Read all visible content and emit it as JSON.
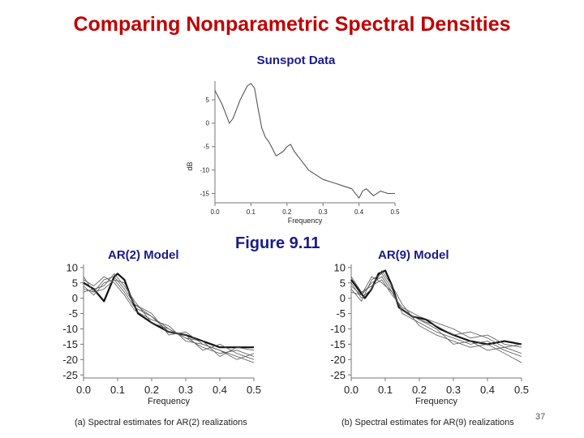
{
  "slide": {
    "title": "Comparing Nonparametric Spectral Densities",
    "top_label": "Sunspot Data",
    "ar2_label": "AR(2) Model",
    "figure_label": "Figure 9.11",
    "ar9_label": "AR(9) Model",
    "page_number": "37",
    "caption_ar2": "(a) Spectral estimates for AR(2) realizations",
    "caption_ar9": "(b) Spectral estimates for AR(9) realizations"
  },
  "colors": {
    "title": "#c00000",
    "labels": "#1a1a8c",
    "curve": "#555555"
  },
  "chart_data": [
    {
      "id": "sunspot",
      "type": "line",
      "xlabel": "Frequency",
      "ylabel": "dB",
      "xlim": [
        0,
        0.5
      ],
      "ylim": [
        -17,
        9
      ],
      "xticks": [
        "0.0",
        "0.1",
        "0.2",
        "0.3",
        "0.4",
        "0.5"
      ],
      "yticks": [
        "5",
        "0",
        "-5",
        "-10",
        "-15"
      ],
      "ytick_values": [
        5,
        0,
        -5,
        -10,
        -15
      ],
      "grid": false,
      "series": [
        {
          "x": [
            0,
            0.02,
            0.04,
            0.05,
            0.07,
            0.09,
            0.1,
            0.11,
            0.12,
            0.13,
            0.14,
            0.15,
            0.17,
            0.19,
            0.2,
            0.21,
            0.22,
            0.24,
            0.26,
            0.28,
            0.3,
            0.32,
            0.34,
            0.36,
            0.38,
            0.4,
            0.41,
            0.42,
            0.44,
            0.46,
            0.48,
            0.5
          ],
          "y": [
            7,
            4,
            0,
            1,
            5,
            8,
            8.5,
            7.5,
            3,
            -1,
            -3,
            -4,
            -7,
            -6,
            -5,
            -4.5,
            -6,
            -8,
            -10,
            -11,
            -12,
            -12.5,
            -13,
            -13.5,
            -14,
            -16,
            -14.5,
            -14,
            -15.5,
            -14.5,
            -15,
            -15
          ]
        }
      ]
    },
    {
      "id": "ar2",
      "type": "line",
      "xlabel": "Frequency",
      "ylabel": "",
      "xlim": [
        0,
        0.5
      ],
      "ylim": [
        -26,
        11
      ],
      "xticks": [
        "0.0",
        "0.1",
        "0.2",
        "0.3",
        "0.4",
        "0.5"
      ],
      "yticks": [
        "10",
        "5",
        "0",
        "-5",
        "-10",
        "-15",
        "-20",
        "-25"
      ],
      "ytick_values": [
        10,
        5,
        0,
        -5,
        -10,
        -15,
        -20,
        -25
      ],
      "grid": false,
      "series": [
        {
          "x": [
            0,
            0.03,
            0.06,
            0.09,
            0.1,
            0.12,
            0.14,
            0.16,
            0.2,
            0.25,
            0.3,
            0.35,
            0.4,
            0.45,
            0.5
          ],
          "y": [
            5,
            3,
            -1,
            7,
            8,
            6,
            0,
            -5,
            -8,
            -11,
            -12,
            -14,
            -16,
            -16,
            -16
          ]
        },
        {
          "x": [
            0,
            0.03,
            0.06,
            0.09,
            0.12,
            0.15,
            0.2,
            0.25,
            0.3,
            0.35,
            0.4,
            0.45,
            0.5
          ],
          "y": [
            3,
            2,
            6,
            7,
            3,
            -2,
            -6,
            -10,
            -13,
            -16,
            -18,
            -17,
            -19
          ]
        },
        {
          "x": [
            0,
            0.03,
            0.06,
            0.09,
            0.12,
            0.15,
            0.2,
            0.25,
            0.3,
            0.35,
            0.4,
            0.45,
            0.5
          ],
          "y": [
            6,
            4,
            7,
            5,
            1,
            -4,
            -7,
            -9,
            -14,
            -15,
            -17,
            -20,
            -18
          ]
        },
        {
          "x": [
            0,
            0.03,
            0.06,
            0.09,
            0.12,
            0.15,
            0.2,
            0.25,
            0.3,
            0.35,
            0.4,
            0.45,
            0.5
          ],
          "y": [
            4,
            1,
            5,
            6,
            2,
            -3,
            -6,
            -11,
            -12,
            -17,
            -15,
            -18,
            -20
          ]
        },
        {
          "x": [
            0,
            0.03,
            0.06,
            0.09,
            0.12,
            0.15,
            0.2,
            0.25,
            0.3,
            0.35,
            0.4,
            0.45,
            0.5
          ],
          "y": [
            2,
            3,
            4,
            8,
            4,
            -1,
            -8,
            -10,
            -13,
            -14,
            -19,
            -16,
            -17
          ]
        },
        {
          "x": [
            0,
            0.03,
            0.06,
            0.09,
            0.12,
            0.15,
            0.2,
            0.25,
            0.3,
            0.35,
            0.4,
            0.45,
            0.5
          ],
          "y": [
            7,
            2,
            3,
            6,
            5,
            -2,
            -5,
            -12,
            -11,
            -15,
            -17,
            -19,
            -21
          ]
        }
      ]
    },
    {
      "id": "ar9",
      "type": "line",
      "xlabel": "Frequency",
      "ylabel": "",
      "xlim": [
        0,
        0.5
      ],
      "ylim": [
        -26,
        11
      ],
      "xticks": [
        "0.0",
        "0.1",
        "0.2",
        "0.3",
        "0.4",
        "0.5"
      ],
      "yticks": [
        "10",
        "5",
        "0",
        "-5",
        "-10",
        "-15",
        "-20",
        "-25"
      ],
      "ytick_values": [
        10,
        5,
        0,
        -5,
        -10,
        -15,
        -20,
        -25
      ],
      "grid": false,
      "series": [
        {
          "x": [
            0,
            0.02,
            0.04,
            0.06,
            0.08,
            0.1,
            0.12,
            0.14,
            0.18,
            0.22,
            0.26,
            0.3,
            0.35,
            0.4,
            0.45,
            0.5
          ],
          "y": [
            6,
            3,
            0,
            3,
            8,
            9,
            4,
            -3,
            -6,
            -7,
            -10,
            -12,
            -14,
            -15,
            -14,
            -15
          ]
        },
        {
          "x": [
            0,
            0.03,
            0.06,
            0.09,
            0.12,
            0.15,
            0.2,
            0.25,
            0.3,
            0.35,
            0.4,
            0.45,
            0.5
          ],
          "y": [
            4,
            1,
            5,
            7,
            2,
            -4,
            -7,
            -9,
            -12,
            -11,
            -13,
            -16,
            -15
          ]
        },
        {
          "x": [
            0,
            0.03,
            0.06,
            0.09,
            0.12,
            0.15,
            0.2,
            0.25,
            0.3,
            0.35,
            0.4,
            0.45,
            0.5
          ],
          "y": [
            3,
            -1,
            6,
            8,
            3,
            -5,
            -8,
            -11,
            -13,
            -15,
            -14,
            -17,
            -19
          ]
        },
        {
          "x": [
            0,
            0.03,
            0.06,
            0.09,
            0.12,
            0.15,
            0.2,
            0.25,
            0.3,
            0.35,
            0.4,
            0.45,
            0.5
          ],
          "y": [
            7,
            2,
            4,
            6,
            1,
            -3,
            -6,
            -8,
            -10,
            -13,
            -12,
            -15,
            -16
          ]
        },
        {
          "x": [
            0,
            0.03,
            0.06,
            0.09,
            0.12,
            0.15,
            0.2,
            0.25,
            0.3,
            0.35,
            0.4,
            0.45,
            0.5
          ],
          "y": [
            5,
            0,
            3,
            9,
            4,
            -2,
            -9,
            -12,
            -14,
            -16,
            -15,
            -18,
            -21
          ]
        },
        {
          "x": [
            0,
            0.03,
            0.06,
            0.09,
            0.12,
            0.15,
            0.2,
            0.25,
            0.3,
            0.35,
            0.4,
            0.45,
            0.5
          ],
          "y": [
            2,
            1,
            7,
            5,
            2,
            -4,
            -7,
            -10,
            -15,
            -14,
            -17,
            -16,
            -18
          ]
        }
      ]
    }
  ]
}
